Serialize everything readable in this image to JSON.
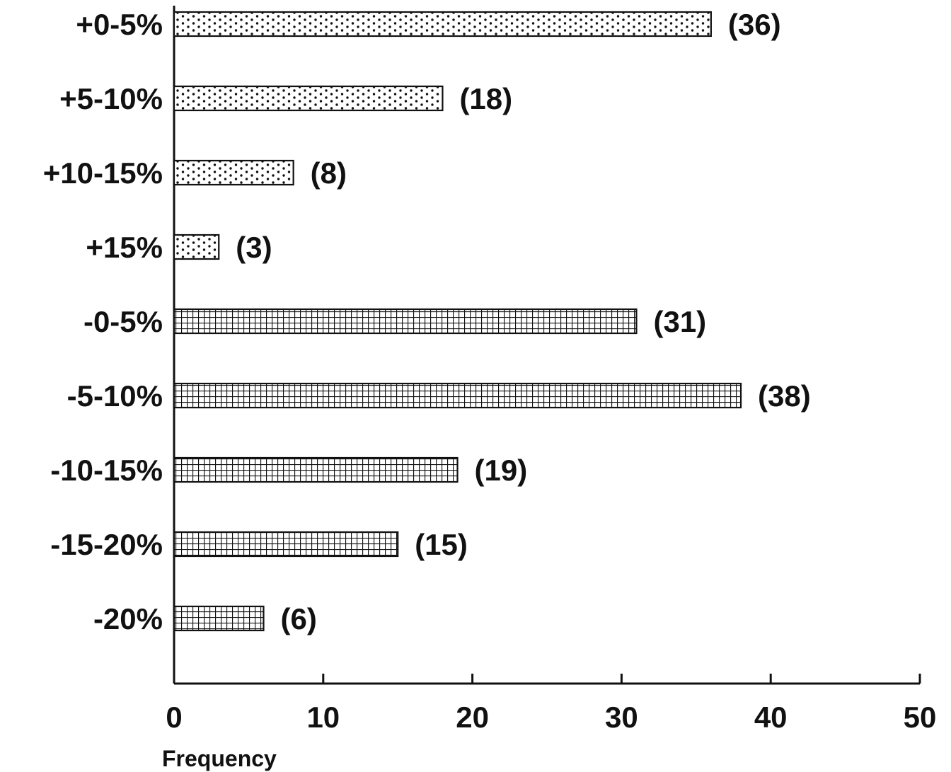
{
  "chart_data": {
    "type": "bar",
    "orientation": "horizontal",
    "categories": [
      "+0-5%",
      "+5-10%",
      "+10-15%",
      "+15%",
      "-0-5%",
      "-5-10%",
      "-10-15%",
      "-15-20%",
      "-20%"
    ],
    "values": [
      36,
      18,
      8,
      3,
      31,
      38,
      19,
      15,
      6
    ],
    "value_labels": [
      "(36)",
      "(18)",
      "(8)",
      "(3)",
      "(31)",
      "(38)",
      "(19)",
      "(15)",
      "(6)"
    ],
    "patterns": [
      "dots",
      "dots",
      "dots",
      "dots",
      "grid",
      "grid",
      "grid",
      "grid",
      "grid"
    ],
    "xlabel": "Frequency",
    "ylabel": "",
    "title": "",
    "xlim": [
      0,
      50
    ],
    "xticks": [
      "0",
      "10",
      "20",
      "30",
      "40",
      "50"
    ],
    "grid": false,
    "colors": {
      "ink": "#111111",
      "background": "#ffffff"
    }
  }
}
